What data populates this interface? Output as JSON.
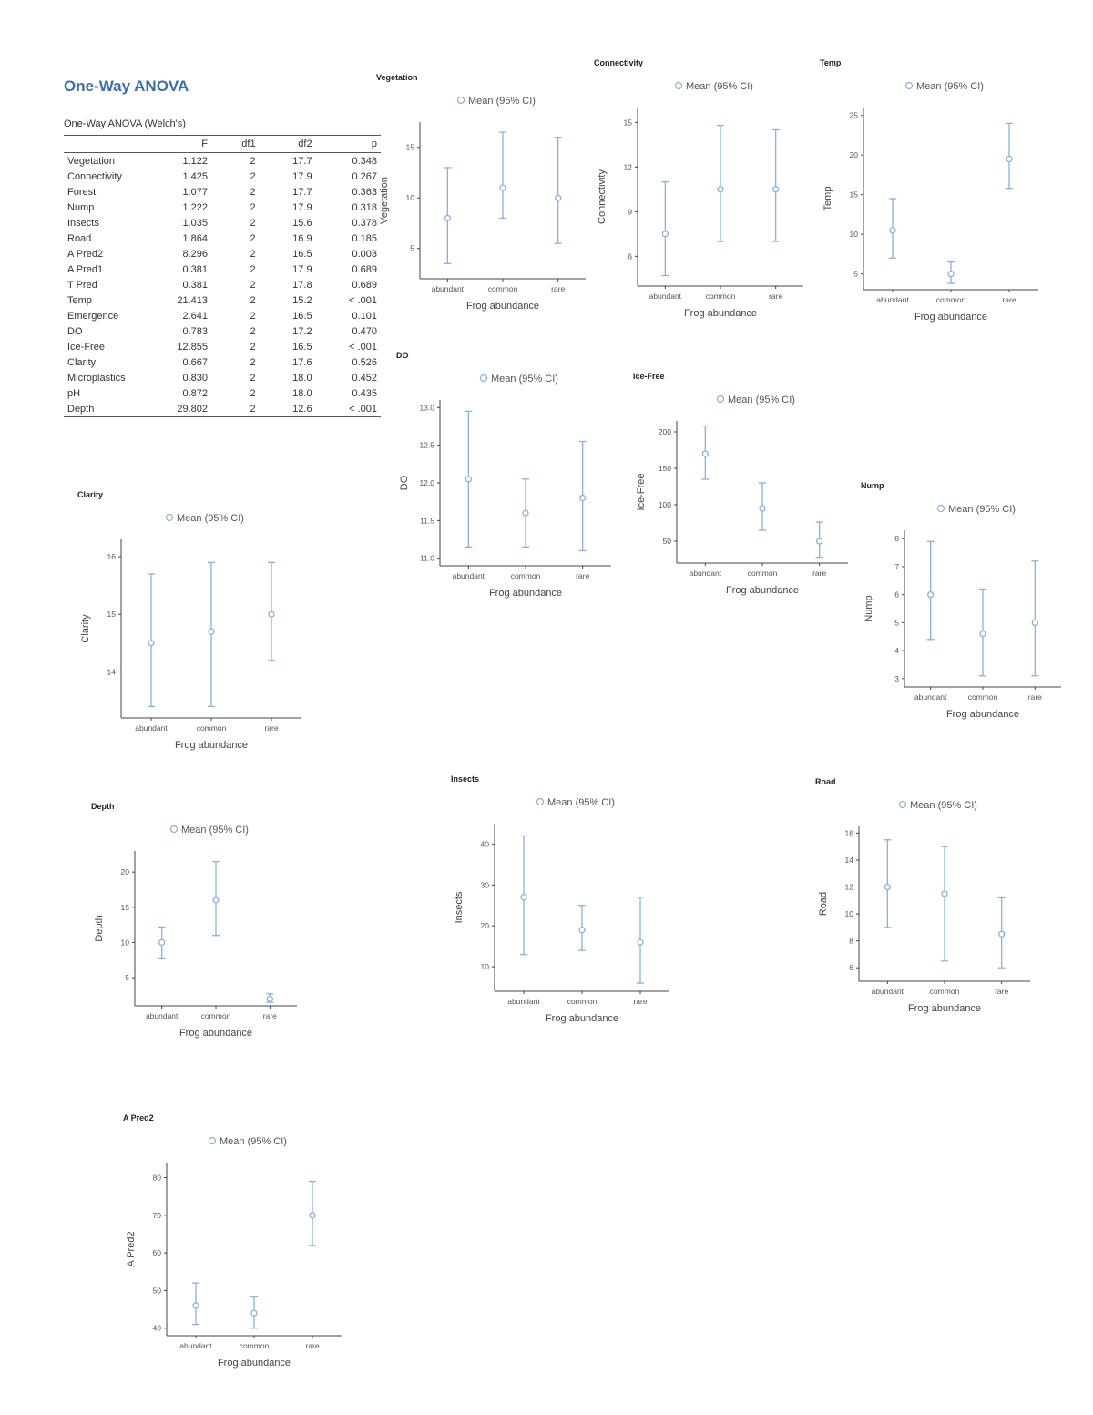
{
  "title": "One-Way ANOVA",
  "table": {
    "caption": "One-Way ANOVA (Welch's)",
    "columns": [
      "",
      "F",
      "df1",
      "df2",
      "p"
    ],
    "rows": [
      {
        "name": "Vegetation",
        "F": "1.122",
        "df1": "2",
        "df2": "17.7",
        "p": "0.348"
      },
      {
        "name": "Connectivity",
        "F": "1.425",
        "df1": "2",
        "df2": "17.9",
        "p": "0.267"
      },
      {
        "name": "Forest",
        "F": "1.077",
        "df1": "2",
        "df2": "17.7",
        "p": "0.363"
      },
      {
        "name": "Nump",
        "F": "1.222",
        "df1": "2",
        "df2": "17.9",
        "p": "0.318"
      },
      {
        "name": "Insects",
        "F": "1.035",
        "df1": "2",
        "df2": "15.6",
        "p": "0.378"
      },
      {
        "name": "Road",
        "F": "1.864",
        "df1": "2",
        "df2": "16.9",
        "p": "0.185"
      },
      {
        "name": "A Pred2",
        "F": "8.296",
        "df1": "2",
        "df2": "16.5",
        "p": "0.003"
      },
      {
        "name": "A Pred1",
        "F": "0.381",
        "df1": "2",
        "df2": "17.9",
        "p": "0.689"
      },
      {
        "name": "T Pred",
        "F": "0.381",
        "df1": "2",
        "df2": "17.8",
        "p": "0.689"
      },
      {
        "name": "Temp",
        "F": "21.413",
        "df1": "2",
        "df2": "15.2",
        "p": "< .001"
      },
      {
        "name": "Emergence",
        "F": "2.641",
        "df1": "2",
        "df2": "16.5",
        "p": "0.101"
      },
      {
        "name": "DO",
        "F": "0.783",
        "df1": "2",
        "df2": "17.2",
        "p": "0.470"
      },
      {
        "name": "Ice-Free",
        "F": "12.855",
        "df1": "2",
        "df2": "16.5",
        "p": "< .001"
      },
      {
        "name": "Clarity",
        "F": "0.667",
        "df1": "2",
        "df2": "17.6",
        "p": "0.526"
      },
      {
        "name": "Microplastics",
        "F": "0.830",
        "df1": "2",
        "df2": "18.0",
        "p": "0.452"
      },
      {
        "name": "pH",
        "F": "0.872",
        "df1": "2",
        "df2": "18.0",
        "p": "0.435"
      },
      {
        "name": "Depth",
        "F": "29.802",
        "df1": "2",
        "df2": "12.6",
        "p": "< .001"
      }
    ]
  },
  "legend_label": "Mean (95% CI)",
  "colors": {
    "heading_blue": "#3e6da9",
    "series_blue": "#8ab0dd",
    "axis": "#444444",
    "tick_text": "#555555"
  },
  "chart_data": [
    {
      "type": "errorbar",
      "title": "Vegetation",
      "ylabel": "Vegetation",
      "xlabel": "Frog abundance",
      "categories": [
        "abundant",
        "common",
        "rare"
      ],
      "means": [
        8,
        11,
        10
      ],
      "ci_low": [
        3.5,
        8,
        5.5
      ],
      "ci_high": [
        13,
        16.5,
        16
      ],
      "yticks": [
        5,
        10,
        15
      ],
      "ylim": [
        2,
        17.5
      ],
      "legend": "Mean (95% CI)",
      "grid": false,
      "legend_position": "top"
    },
    {
      "type": "errorbar",
      "title": "Connectivity",
      "ylabel": "Connectivity",
      "xlabel": "Frog abundance",
      "categories": [
        "abundant",
        "common",
        "rare"
      ],
      "means": [
        7.5,
        10.5,
        10.5
      ],
      "ci_low": [
        4.7,
        7,
        7
      ],
      "ci_high": [
        11,
        14.8,
        14.5
      ],
      "yticks": [
        6,
        9,
        12,
        15
      ],
      "ylim": [
        4,
        16
      ],
      "legend": "Mean (95% CI)",
      "grid": false,
      "legend_position": "top"
    },
    {
      "type": "errorbar",
      "title": "Temp",
      "ylabel": "Temp",
      "xlabel": "Frog abundance",
      "categories": [
        "abundant",
        "common",
        "rare"
      ],
      "means": [
        10.5,
        5,
        19.5
      ],
      "ci_low": [
        7,
        3.8,
        15.8
      ],
      "ci_high": [
        14.5,
        6.5,
        24
      ],
      "yticks": [
        5,
        10,
        15,
        20,
        25
      ],
      "ylim": [
        3,
        26
      ],
      "legend": "Mean (95% CI)",
      "grid": false,
      "legend_position": "top"
    },
    {
      "type": "errorbar",
      "title": "DO",
      "ylabel": "DO",
      "xlabel": "Frog abundance",
      "categories": [
        "abundant",
        "common",
        "rare"
      ],
      "means": [
        12.05,
        11.6,
        11.8
      ],
      "ci_low": [
        11.15,
        11.15,
        11.1
      ],
      "ci_high": [
        12.95,
        12.05,
        12.55
      ],
      "yticks": [
        11.0,
        11.5,
        12.0,
        12.5,
        13.0
      ],
      "ylim": [
        10.9,
        13.1
      ],
      "legend": "Mean (95% CI)",
      "grid": false,
      "legend_position": "top"
    },
    {
      "type": "errorbar",
      "title": "Ice-Free",
      "ylabel": "Ice-Free",
      "xlabel": "Frog abundance",
      "categories": [
        "abundant",
        "common",
        "rare"
      ],
      "means": [
        170,
        95,
        50
      ],
      "ci_low": [
        135,
        65,
        28
      ],
      "ci_high": [
        208,
        130,
        76
      ],
      "yticks": [
        50,
        100,
        150,
        200
      ],
      "ylim": [
        20,
        215
      ],
      "legend": "Mean (95% CI)",
      "grid": false,
      "legend_position": "top"
    },
    {
      "type": "errorbar",
      "title": "Nump",
      "ylabel": "Nump",
      "xlabel": "Frog abundance",
      "categories": [
        "abundant",
        "common",
        "rare"
      ],
      "means": [
        6,
        4.6,
        5
      ],
      "ci_low": [
        4.4,
        3.1,
        3.1
      ],
      "ci_high": [
        7.9,
        6.2,
        7.2
      ],
      "yticks": [
        3,
        4,
        5,
        6,
        7,
        8
      ],
      "ylim": [
        2.7,
        8.3
      ],
      "legend": "Mean (95% CI)",
      "grid": false,
      "legend_position": "top"
    },
    {
      "type": "errorbar",
      "title": "Clarity",
      "ylabel": "Clarity",
      "xlabel": "Frog abundance",
      "categories": [
        "abundant",
        "common",
        "rare"
      ],
      "means": [
        14.5,
        14.7,
        15
      ],
      "ci_low": [
        13.4,
        13.4,
        14.2
      ],
      "ci_high": [
        15.7,
        15.9,
        15.9
      ],
      "yticks": [
        14,
        15,
        16
      ],
      "ylim": [
        13.2,
        16.3
      ],
      "legend": "Mean (95% CI)",
      "grid": false,
      "legend_position": "top"
    },
    {
      "type": "errorbar",
      "title": "Depth",
      "ylabel": "Depth",
      "xlabel": "Frog abundance",
      "categories": [
        "abundant",
        "common",
        "rare"
      ],
      "means": [
        10,
        16,
        2
      ],
      "ci_low": [
        7.8,
        11,
        1.5
      ],
      "ci_high": [
        12.2,
        21.5,
        2.7
      ],
      "yticks": [
        5,
        10,
        15,
        20
      ],
      "ylim": [
        1,
        23
      ],
      "legend": "Mean (95% CI)",
      "grid": false,
      "legend_position": "top"
    },
    {
      "type": "errorbar",
      "title": "Insects",
      "ylabel": "Insects",
      "xlabel": "Frog abundance",
      "categories": [
        "abundant",
        "common",
        "rare"
      ],
      "means": [
        27,
        19,
        16
      ],
      "ci_low": [
        13,
        14,
        6
      ],
      "ci_high": [
        42,
        25,
        27
      ],
      "yticks": [
        10,
        20,
        30,
        40
      ],
      "ylim": [
        4,
        45
      ],
      "legend": "Mean (95% CI)",
      "grid": false,
      "legend_position": "top"
    },
    {
      "type": "errorbar",
      "title": "Road",
      "ylabel": "Road",
      "xlabel": "Frog abundance",
      "categories": [
        "abundant",
        "common",
        "rare"
      ],
      "means": [
        12,
        11.5,
        8.5
      ],
      "ci_low": [
        9,
        6.5,
        6
      ],
      "ci_high": [
        15.5,
        15,
        11.2
      ],
      "yticks": [
        6,
        8,
        10,
        12,
        14,
        16
      ],
      "ylim": [
        5,
        16.5
      ],
      "legend": "Mean (95% CI)",
      "grid": false,
      "legend_position": "top"
    },
    {
      "type": "errorbar",
      "title": "A Pred2",
      "ylabel": "A Pred2",
      "xlabel": "Frog abundance",
      "categories": [
        "abundant",
        "common",
        "rare"
      ],
      "means": [
        46,
        44,
        70
      ],
      "ci_low": [
        41,
        40,
        62
      ],
      "ci_high": [
        52,
        48.5,
        79
      ],
      "yticks": [
        40,
        50,
        60,
        70,
        80
      ],
      "ylim": [
        38,
        84
      ],
      "legend": "Mean (95% CI)",
      "grid": false,
      "legend_position": "top"
    }
  ]
}
